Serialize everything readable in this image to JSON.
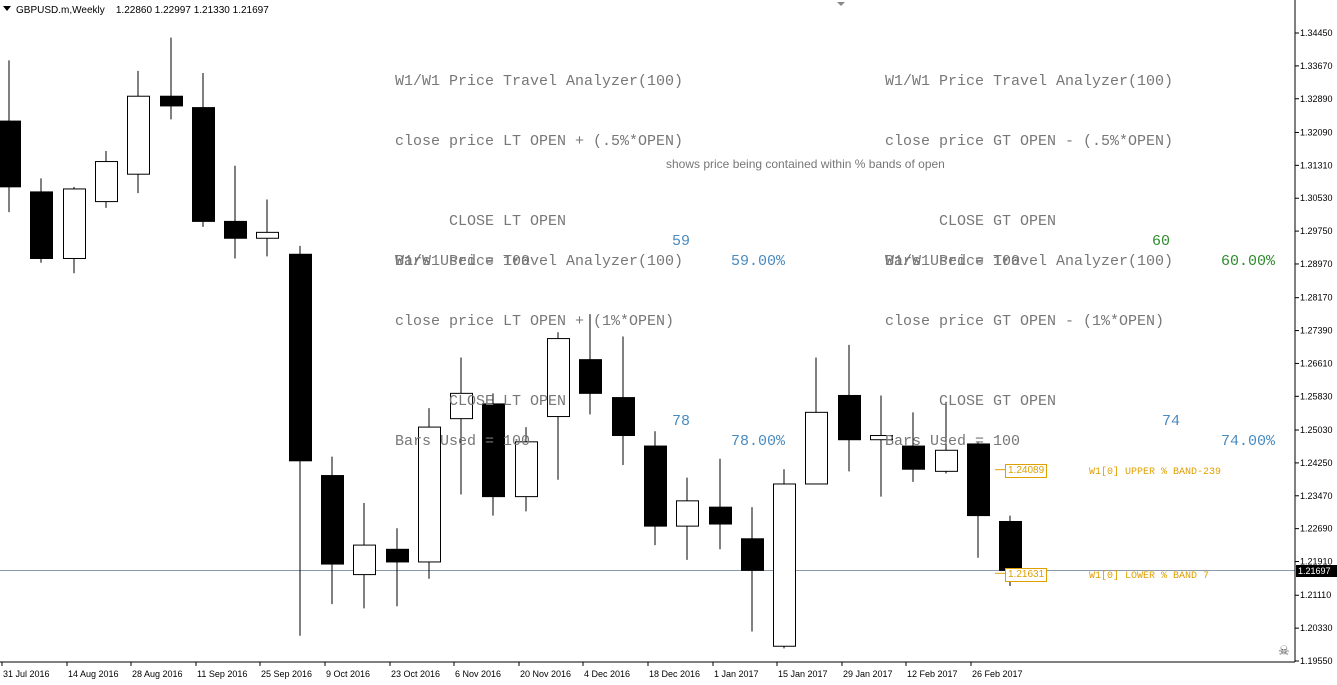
{
  "header": {
    "symbol": "GBPUSD.m,Weekly",
    "ohlc": "1.22860 1.22997 1.21330 1.21697"
  },
  "panels": [
    {
      "title": "W1/W1 Price Travel Analyzer(100)",
      "condition": "close price LT OPEN + (.5%*OPEN)",
      "stat_label": "CLOSE LT OPEN",
      "count": "59",
      "percent": "59.00%",
      "bars": "Bars Used = 100",
      "color": "#4a8bbf"
    },
    {
      "title": "W1/W1 Price Travel Analyzer(100)",
      "condition": "close price GT OPEN - (.5%*OPEN)",
      "stat_label": "CLOSE GT OPEN",
      "count": "60",
      "percent": "60.00%",
      "bars": "Bars Used = 100",
      "color": "#2e8b2e"
    },
    {
      "title": "W1/W1 Price Travel Analyzer(100)",
      "condition": "close price LT OPEN + (1%*OPEN)",
      "stat_label": "CLOSE LT OPEN",
      "count": "78",
      "percent": "78.00%",
      "bars": "Bars Used = 100",
      "color": "#4a8bbf"
    },
    {
      "title": "W1/W1 Price Travel Analyzer(100)",
      "condition": "close price GT OPEN - (1%*OPEN)",
      "stat_label": "CLOSE GT OPEN",
      "count": "74",
      "percent": "74.00%",
      "bars": "Bars Used = 100",
      "color": "#4a8bbf"
    }
  ],
  "note": "shows price being contained within % bands of open",
  "bands": {
    "upper_value": "1.24089",
    "upper_label": "W1[0] UPPER % BAND-239",
    "lower_value": "1.21631",
    "lower_label": "W1[0] LOWER % BAND 7",
    "color": "#e0a000"
  },
  "current_price": "1.21697",
  "chart_data": {
    "type": "candlestick",
    "price_axis_ticks": [
      "1.34450",
      "1.33670",
      "1.32890",
      "1.32090",
      "1.31310",
      "1.30530",
      "1.29750",
      "1.28970",
      "1.28170",
      "1.27390",
      "1.26610",
      "1.25830",
      "1.25030",
      "1.24250",
      "1.23470",
      "1.22690",
      "1.21910",
      "1.21110",
      "1.20330",
      "1.19550"
    ],
    "time_axis_labels": [
      "31 Jul 2016",
      "14 Aug 2016",
      "28 Aug 2016",
      "11 Sep 2016",
      "25 Sep 2016",
      "9 Oct 2016",
      "23 Oct 2016",
      "6 Nov 2016",
      "20 Nov 2016",
      "4 Dec 2016",
      "18 Dec 2016",
      "1 Jan 2017",
      "15 Jan 2017",
      "29 Jan 2017",
      "12 Feb 2017",
      "26 Feb 2017"
    ],
    "ylim": [
      1.1955,
      1.3445
    ],
    "candles": [
      {
        "o": 1.3236,
        "h": 1.338,
        "l": 1.302,
        "c": 1.308
      },
      {
        "o": 1.3068,
        "h": 1.31,
        "l": 1.29,
        "c": 1.291
      },
      {
        "o": 1.291,
        "h": 1.308,
        "l": 1.2875,
        "c": 1.3075
      },
      {
        "o": 1.3045,
        "h": 1.3165,
        "l": 1.303,
        "c": 1.314
      },
      {
        "o": 1.311,
        "h": 1.3355,
        "l": 1.3065,
        "c": 1.3295
      },
      {
        "o": 1.3295,
        "h": 1.3434,
        "l": 1.324,
        "c": 1.3272
      },
      {
        "o": 1.3268,
        "h": 1.335,
        "l": 1.2985,
        "c": 1.2998
      },
      {
        "o": 1.2998,
        "h": 1.313,
        "l": 1.291,
        "c": 1.2958
      },
      {
        "o": 1.2958,
        "h": 1.305,
        "l": 1.2915,
        "c": 1.2972
      },
      {
        "o": 1.292,
        "h": 1.294,
        "l": 1.2015,
        "c": 1.243
      },
      {
        "o": 1.2395,
        "h": 1.244,
        "l": 1.209,
        "c": 1.2185
      },
      {
        "o": 1.216,
        "h": 1.233,
        "l": 1.208,
        "c": 1.223
      },
      {
        "o": 1.222,
        "h": 1.227,
        "l": 1.2085,
        "c": 1.219
      },
      {
        "o": 1.219,
        "h": 1.2555,
        "l": 1.215,
        "c": 1.251
      },
      {
        "o": 1.253,
        "h": 1.2675,
        "l": 1.235,
        "c": 1.259
      },
      {
        "o": 1.2565,
        "h": 1.259,
        "l": 1.23,
        "c": 1.2345
      },
      {
        "o": 1.2345,
        "h": 1.251,
        "l": 1.231,
        "c": 1.2475
      },
      {
        "o": 1.2535,
        "h": 1.2735,
        "l": 1.2385,
        "c": 1.272
      },
      {
        "o": 1.267,
        "h": 1.2778,
        "l": 1.254,
        "c": 1.259
      },
      {
        "o": 1.258,
        "h": 1.2725,
        "l": 1.242,
        "c": 1.249
      },
      {
        "o": 1.2465,
        "h": 1.25,
        "l": 1.223,
        "c": 1.2275
      },
      {
        "o": 1.2275,
        "h": 1.239,
        "l": 1.2195,
        "c": 1.2335
      },
      {
        "o": 1.232,
        "h": 1.2435,
        "l": 1.222,
        "c": 1.228
      },
      {
        "o": 1.2245,
        "h": 1.232,
        "l": 1.2025,
        "c": 1.217
      },
      {
        "o": 1.199,
        "h": 1.241,
        "l": 1.1985,
        "c": 1.2375
      },
      {
        "o": 1.2375,
        "h": 1.2675,
        "l": 1.2375,
        "c": 1.2545
      },
      {
        "o": 1.2585,
        "h": 1.2705,
        "l": 1.2405,
        "c": 1.248
      },
      {
        "o": 1.248,
        "h": 1.2585,
        "l": 1.2345,
        "c": 1.249
      },
      {
        "o": 1.2465,
        "h": 1.2545,
        "l": 1.238,
        "c": 1.241
      },
      {
        "o": 1.2405,
        "h": 1.257,
        "l": 1.24,
        "c": 1.2455
      },
      {
        "o": 1.247,
        "h": 1.2475,
        "l": 1.22,
        "c": 1.23
      },
      {
        "o": 1.2286,
        "h": 1.23,
        "l": 1.2133,
        "c": 1.217
      }
    ]
  }
}
